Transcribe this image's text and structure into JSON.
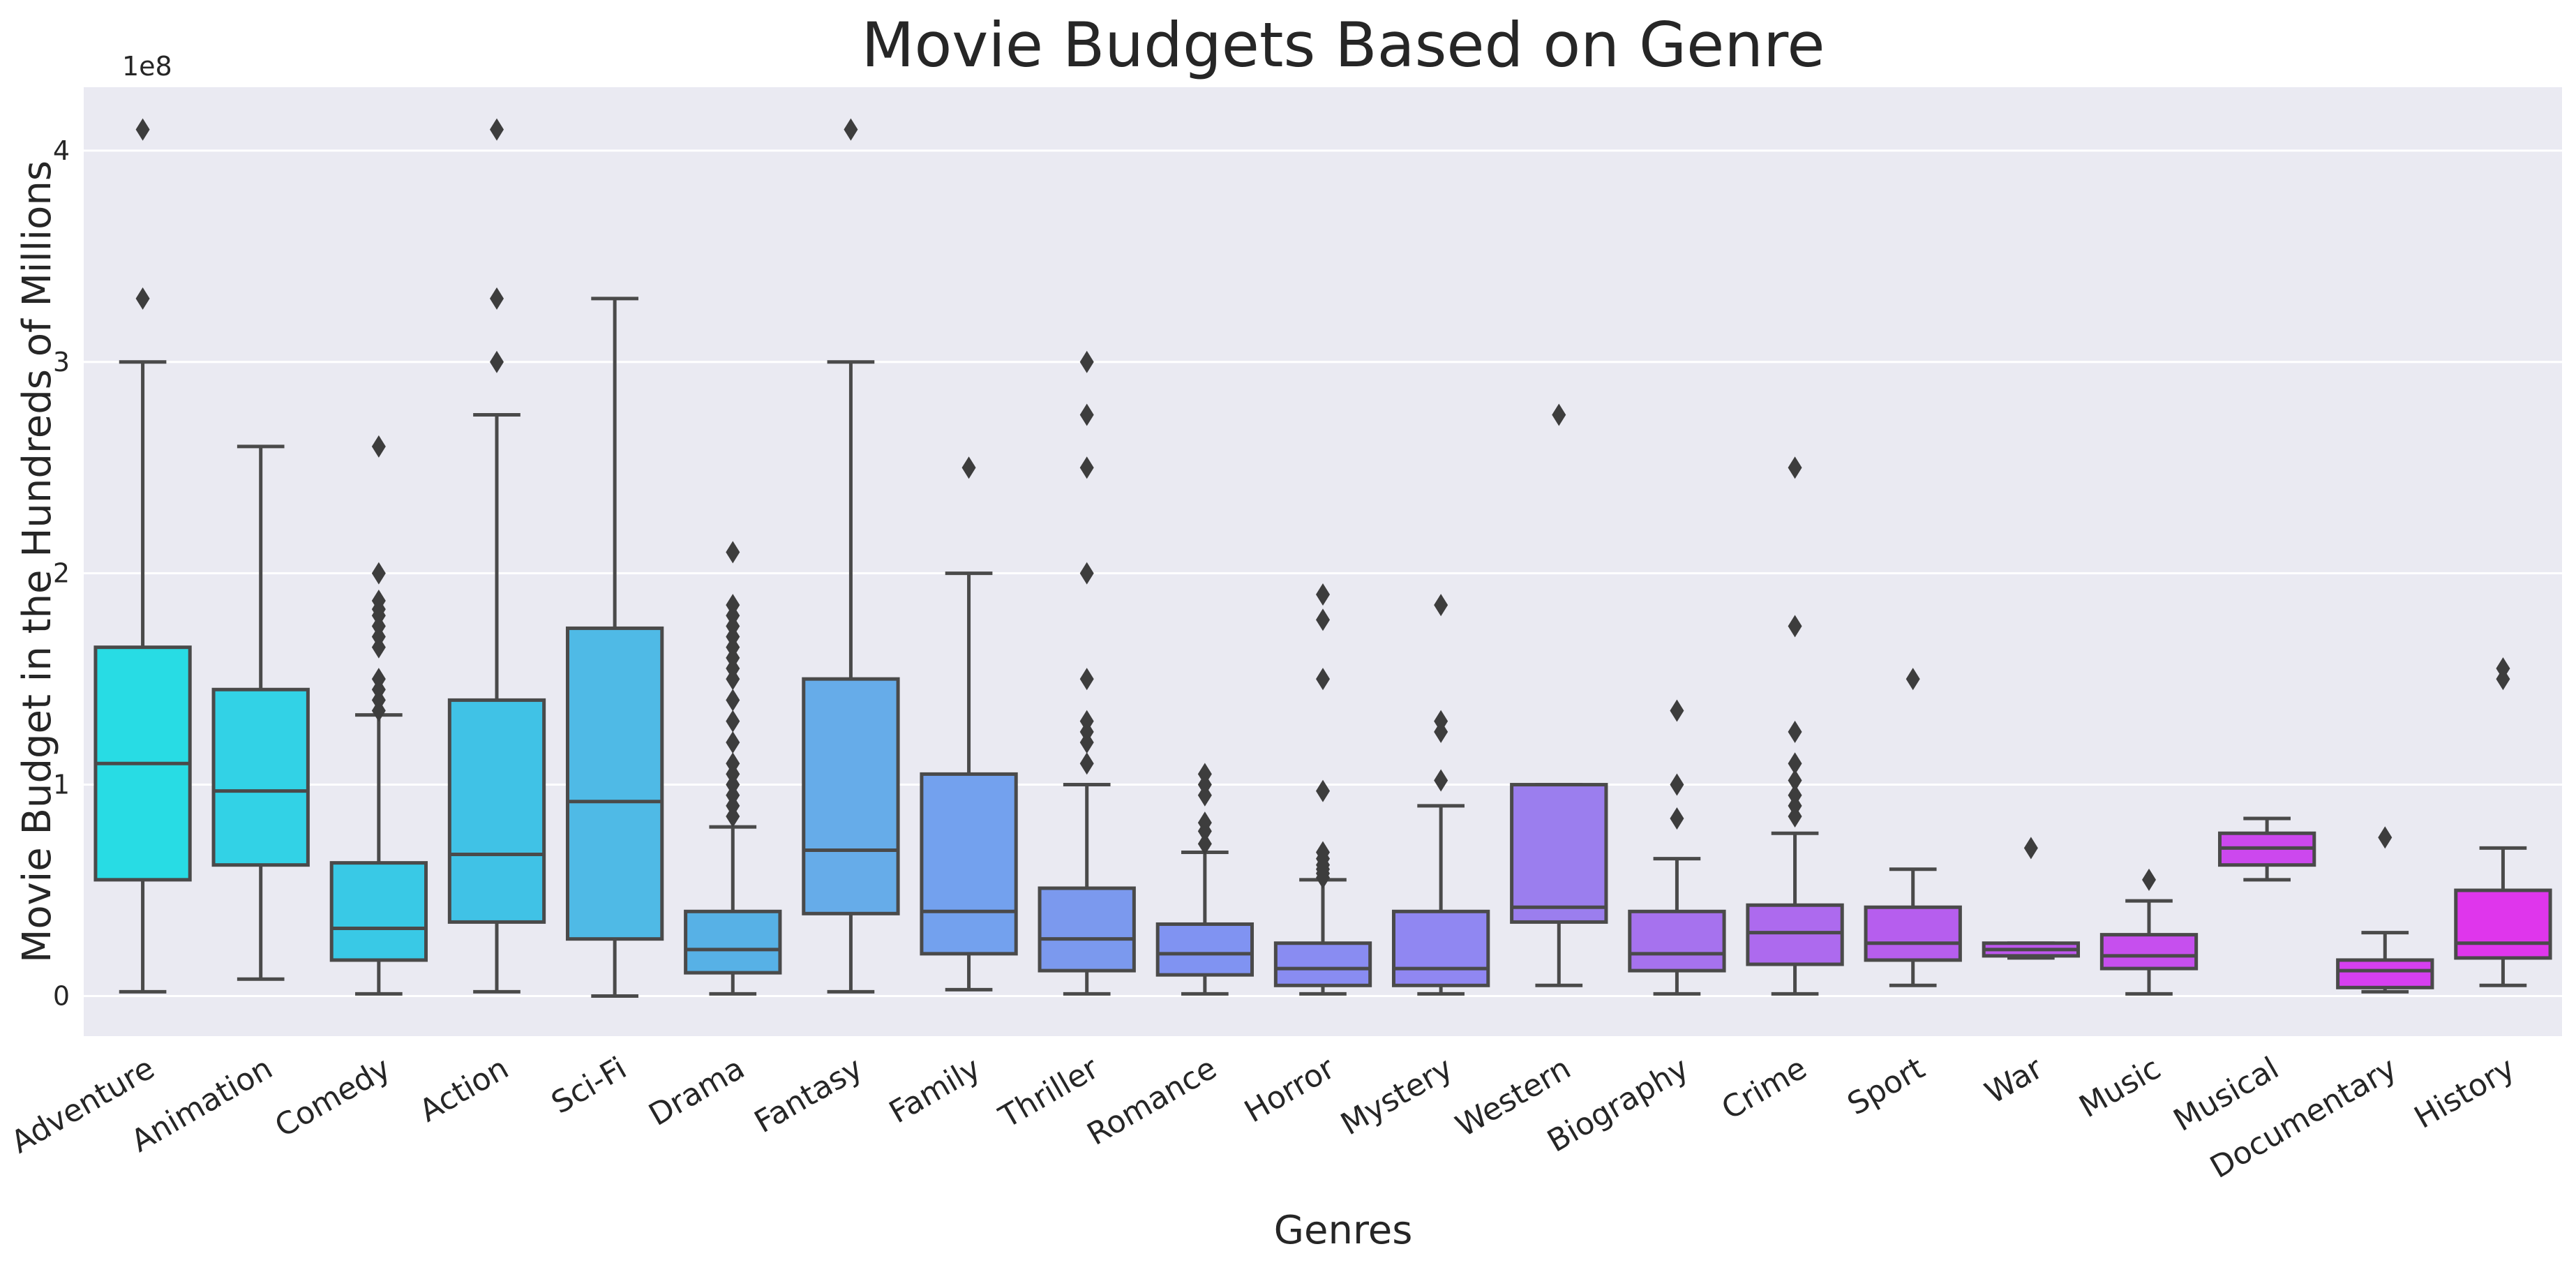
{
  "chart_data": {
    "type": "box",
    "title": "Movie Budgets Based on Genre",
    "xlabel": "Genres",
    "ylabel": "Movie Budget in the Hundreds of Millions",
    "y_offset_label": "1e8",
    "ylim": [
      -0.19,
      4.3
    ],
    "yticks": [
      0,
      1,
      2,
      3,
      4
    ],
    "grid": true,
    "background": "#eaeaf2",
    "categories": [
      {
        "genre": "Adventure",
        "color": "#28dce4",
        "whislo": 0.02,
        "q1": 0.55,
        "med": 1.1,
        "q3": 1.65,
        "whishi": 3.0,
        "fliers": [
          4.1,
          3.3
        ]
      },
      {
        "genre": "Animation",
        "color": "#32d2e6",
        "whislo": 0.08,
        "q1": 0.62,
        "med": 0.97,
        "q3": 1.45,
        "whishi": 2.6,
        "fliers": []
      },
      {
        "genre": "Comedy",
        "color": "#39c9e6",
        "whislo": 0.01,
        "q1": 0.17,
        "med": 0.32,
        "q3": 0.63,
        "whishi": 1.33,
        "fliers": [
          2.6,
          2.0,
          1.87,
          1.83,
          1.8,
          1.75,
          1.7,
          1.65,
          1.5,
          1.45,
          1.4,
          1.35
        ]
      },
      {
        "genre": "Action",
        "color": "#40c2e6",
        "whislo": 0.02,
        "q1": 0.35,
        "med": 0.67,
        "q3": 1.4,
        "whishi": 2.75,
        "fliers": [
          4.1,
          3.3,
          3.0
        ]
      },
      {
        "genre": "Sci-Fi",
        "color": "#4fbae6",
        "whislo": 0.0,
        "q1": 0.27,
        "med": 0.92,
        "q3": 1.74,
        "whishi": 3.3,
        "fliers": []
      },
      {
        "genre": "Drama",
        "color": "#57b1e6",
        "whislo": 0.01,
        "q1": 0.11,
        "med": 0.22,
        "q3": 0.4,
        "whishi": 0.8,
        "fliers": [
          2.1,
          1.85,
          1.8,
          1.75,
          1.7,
          1.65,
          1.6,
          1.55,
          1.5,
          1.4,
          1.3,
          1.2,
          1.1,
          1.05,
          1.0,
          0.95,
          0.9,
          0.85
        ]
      },
      {
        "genre": "Fantasy",
        "color": "#66ace9",
        "whislo": 0.02,
        "q1": 0.39,
        "med": 0.69,
        "q3": 1.5,
        "whishi": 3.0,
        "fliers": [
          4.1
        ]
      },
      {
        "genre": "Family",
        "color": "#73a1ee",
        "whislo": 0.03,
        "q1": 0.2,
        "med": 0.4,
        "q3": 1.05,
        "whishi": 2.0,
        "fliers": [
          2.5
        ]
      },
      {
        "genre": "Thriller",
        "color": "#7b99ee",
        "whislo": 0.01,
        "q1": 0.12,
        "med": 0.27,
        "q3": 0.51,
        "whishi": 1.0,
        "fliers": [
          3.0,
          2.75,
          2.5,
          2.0,
          1.5,
          1.3,
          1.25,
          1.2,
          1.1
        ]
      },
      {
        "genre": "Romance",
        "color": "#8093f2",
        "whislo": 0.01,
        "q1": 0.1,
        "med": 0.2,
        "q3": 0.34,
        "whishi": 0.68,
        "fliers": [
          1.05,
          1.0,
          0.95,
          0.82,
          0.78,
          0.72
        ]
      },
      {
        "genre": "Horror",
        "color": "#898cf2",
        "whislo": 0.01,
        "q1": 0.05,
        "med": 0.13,
        "q3": 0.25,
        "whishi": 0.55,
        "fliers": [
          1.9,
          1.78,
          1.5,
          0.97,
          0.68,
          0.65,
          0.62,
          0.6,
          0.58,
          0.56
        ]
      },
      {
        "genre": "Mystery",
        "color": "#9087f2",
        "whislo": 0.01,
        "q1": 0.05,
        "med": 0.13,
        "q3": 0.4,
        "whishi": 0.9,
        "fliers": [
          1.85,
          1.3,
          1.25,
          1.02
        ]
      },
      {
        "genre": "Western",
        "color": "#9b7eee",
        "whislo": 0.05,
        "q1": 0.35,
        "med": 0.42,
        "q3": 1.0,
        "whishi": 1.0,
        "fliers": [
          2.75
        ]
      },
      {
        "genre": "Biography",
        "color": "#a672ee",
        "whislo": 0.01,
        "q1": 0.12,
        "med": 0.2,
        "q3": 0.4,
        "whishi": 0.65,
        "fliers": [
          1.35,
          1.0,
          0.84
        ]
      },
      {
        "genre": "Crime",
        "color": "#ad6aee",
        "whislo": 0.01,
        "q1": 0.15,
        "med": 0.3,
        "q3": 0.43,
        "whishi": 0.77,
        "fliers": [
          2.5,
          1.75,
          1.25,
          1.1,
          1.02,
          0.95,
          0.9,
          0.85
        ]
      },
      {
        "genre": "Sport",
        "color": "#b65eee",
        "whislo": 0.05,
        "q1": 0.17,
        "med": 0.25,
        "q3": 0.42,
        "whishi": 0.6,
        "fliers": [
          1.5
        ]
      },
      {
        "genre": "War",
        "color": "#bd57ee",
        "whislo": 0.18,
        "q1": 0.19,
        "med": 0.22,
        "q3": 0.25,
        "whishi": 0.25,
        "fliers": [
          0.7
        ]
      },
      {
        "genre": "Music",
        "color": "#c64fee",
        "whislo": 0.01,
        "q1": 0.13,
        "med": 0.19,
        "q3": 0.29,
        "whishi": 0.45,
        "fliers": [
          0.55
        ]
      },
      {
        "genre": "Musical",
        "color": "#cc48ee",
        "whislo": 0.55,
        "q1": 0.62,
        "med": 0.7,
        "q3": 0.77,
        "whishi": 0.84,
        "fliers": []
      },
      {
        "genre": "Documentary",
        "color": "#d63ff0",
        "whislo": 0.02,
        "q1": 0.04,
        "med": 0.12,
        "q3": 0.17,
        "whishi": 0.3,
        "fliers": [
          0.75
        ]
      },
      {
        "genre": "History",
        "color": "#df36ec",
        "whislo": 0.05,
        "q1": 0.18,
        "med": 0.25,
        "q3": 0.5,
        "whishi": 0.7,
        "fliers": [
          1.55,
          1.5
        ]
      }
    ]
  }
}
